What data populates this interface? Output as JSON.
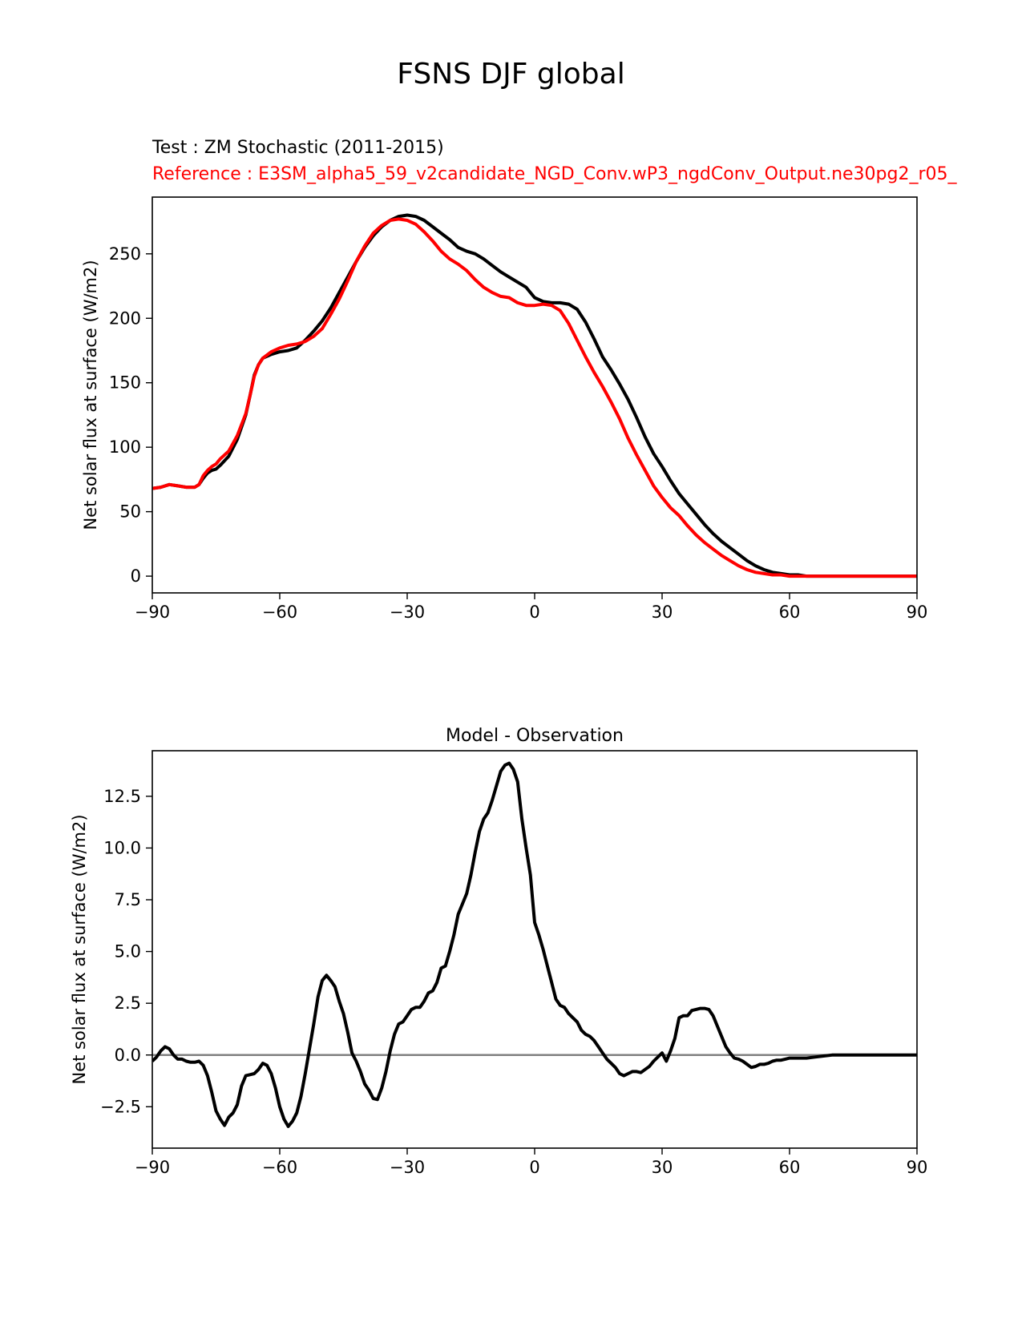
{
  "suptitle": "FSNS DJF global",
  "test_label": "Test : ZM Stochastic (2011-2015)",
  "reference_label": "Reference : E3SM_alpha5_59_v2candidate_NGD_Conv.wP3_ngdConv_Output.ne30pg2_r05_",
  "colors": {
    "test": "#000000",
    "reference": "#ff0000",
    "zero_line": "#808080"
  },
  "chart_data": [
    {
      "type": "line",
      "title": "",
      "xlabel": "",
      "ylabel": "Net solar flux at surface (W/m2)",
      "xlim": [
        -90,
        90
      ],
      "ylim": [
        -13,
        294
      ],
      "xticks": [
        -90,
        -60,
        -30,
        0,
        30,
        60,
        90
      ],
      "xtick_labels": [
        "−90",
        "−60",
        "−30",
        "0",
        "30",
        "60",
        "90"
      ],
      "yticks": [
        0,
        50,
        100,
        150,
        200,
        250
      ],
      "ytick_labels": [
        "0",
        "50",
        "100",
        "150",
        "200",
        "250"
      ],
      "series": [
        {
          "name": "Test",
          "color": "#000000",
          "x": [
            -90,
            -88,
            -86,
            -84,
            -82,
            -80,
            -79,
            -78,
            -77,
            -76,
            -75,
            -74,
            -72,
            -70,
            -68,
            -67,
            -66,
            -65,
            -64,
            -62,
            -60,
            -58,
            -56,
            -54,
            -52,
            -50,
            -48,
            -46,
            -44,
            -42,
            -40,
            -38,
            -36,
            -34,
            -32,
            -30,
            -28,
            -26,
            -24,
            -22,
            -20,
            -18,
            -16,
            -14,
            -12,
            -10,
            -8,
            -6,
            -4,
            -2,
            -1,
            0,
            2,
            4,
            6,
            8,
            10,
            12,
            14,
            16,
            18,
            20,
            22,
            24,
            26,
            28,
            30,
            32,
            34,
            36,
            38,
            40,
            42,
            44,
            46,
            48,
            50,
            52,
            54,
            56,
            58,
            60,
            62,
            64,
            66,
            68,
            70,
            74,
            78,
            82,
            86,
            90
          ],
          "y": [
            68,
            69,
            71,
            70,
            69,
            69,
            71,
            76,
            80,
            82,
            83,
            86,
            93,
            106,
            125,
            140,
            156,
            164,
            169,
            172,
            174,
            175,
            177,
            183,
            190,
            198,
            208,
            220,
            232,
            244,
            255,
            264,
            271,
            276,
            279,
            280,
            279,
            276,
            271,
            266,
            261,
            255,
            252,
            250,
            246,
            241,
            236,
            232,
            228,
            224,
            220,
            216,
            213,
            212,
            212,
            211,
            207,
            197,
            184,
            170,
            160,
            149,
            137,
            123,
            108,
            95,
            85,
            74,
            64,
            56,
            48,
            40,
            33,
            27,
            22,
            17,
            12,
            8,
            5,
            3,
            2,
            1,
            1,
            0,
            0,
            0,
            0,
            0,
            0,
            0,
            0,
            0
          ]
        },
        {
          "name": "Reference",
          "color": "#ff0000",
          "x": [
            -90,
            -88,
            -86,
            -84,
            -82,
            -80,
            -79,
            -78,
            -77,
            -76,
            -75,
            -74,
            -72,
            -70,
            -68,
            -67,
            -66,
            -65,
            -64,
            -62,
            -60,
            -58,
            -56,
            -54,
            -52,
            -50,
            -48,
            -46,
            -44,
            -42,
            -40,
            -38,
            -36,
            -34,
            -32,
            -30,
            -28,
            -26,
            -24,
            -22,
            -20,
            -18,
            -16,
            -14,
            -12,
            -10,
            -8,
            -6,
            -4,
            -2,
            -1,
            0,
            2,
            4,
            6,
            8,
            10,
            12,
            14,
            16,
            18,
            20,
            22,
            24,
            26,
            28,
            30,
            32,
            34,
            36,
            38,
            40,
            42,
            44,
            46,
            48,
            50,
            52,
            54,
            56,
            58,
            60,
            62,
            64,
            66,
            68,
            70,
            74,
            78,
            82,
            86,
            90
          ],
          "y": [
            68,
            69,
            71,
            70,
            69,
            69,
            71,
            78,
            82,
            85,
            87,
            91,
            97,
            109,
            126,
            140,
            155,
            164,
            169,
            174,
            177,
            179,
            180,
            182,
            186,
            192,
            203,
            215,
            229,
            244,
            256,
            266,
            272,
            276,
            277,
            276,
            273,
            267,
            260,
            252,
            246,
            242,
            237,
            230,
            224,
            220,
            217,
            216,
            212,
            210,
            210,
            210,
            211,
            210,
            206,
            196,
            183,
            170,
            158,
            147,
            135,
            122,
            107,
            94,
            82,
            70,
            61,
            53,
            47,
            39,
            32,
            26,
            21,
            16,
            12,
            8,
            5,
            3,
            2,
            1,
            1,
            0,
            0,
            0,
            0,
            0,
            0,
            0,
            0,
            0,
            0,
            0
          ]
        }
      ]
    },
    {
      "type": "line",
      "title": "Model - Observation",
      "xlabel": "",
      "ylabel": "Net solar flux at surface (W/m2)",
      "xlim": [
        -90,
        90
      ],
      "ylim": [
        -4.5,
        14.7
      ],
      "xticks": [
        -90,
        -60,
        -30,
        0,
        30,
        60,
        90
      ],
      "xtick_labels": [
        "−90",
        "−60",
        "−30",
        "0",
        "30",
        "60",
        "90"
      ],
      "yticks": [
        -2.5,
        0,
        2.5,
        5,
        7.5,
        10,
        12.5
      ],
      "ytick_labels": [
        "−2.5",
        "0.0",
        "2.5",
        "5.0",
        "7.5",
        "10.0",
        "12.5"
      ],
      "zero_line": 0,
      "series": [
        {
          "name": "Model - Observation",
          "color": "#000000",
          "x": [
            -90,
            -89,
            -88,
            -87,
            -86,
            -85,
            -84,
            -83,
            -82,
            -81,
            -80,
            -79,
            -78,
            -77,
            -76,
            -75,
            -74,
            -73,
            -72,
            -71,
            -70,
            -69,
            -68,
            -67,
            -66,
            -65,
            -64,
            -63,
            -62,
            -61,
            -60,
            -59,
            -58,
            -57,
            -56,
            -55,
            -54,
            -53,
            -52,
            -51,
            -50,
            -49,
            -48,
            -47,
            -46,
            -45,
            -44,
            -43,
            -42,
            -41,
            -40,
            -39,
            -38,
            -37,
            -36,
            -35,
            -34,
            -33,
            -32,
            -31,
            -30,
            -29,
            -28,
            -27,
            -26,
            -25,
            -24,
            -23,
            -22,
            -21,
            -20,
            -19,
            -18,
            -17,
            -16,
            -15,
            -14,
            -13,
            -12,
            -11,
            -10,
            -9,
            -8,
            -7,
            -6,
            -5,
            -4,
            -3,
            -2,
            -1,
            0,
            1,
            2,
            3,
            4,
            5,
            6,
            7,
            8,
            9,
            10,
            11,
            12,
            13,
            14,
            15,
            16,
            17,
            18,
            19,
            20,
            21,
            22,
            23,
            24,
            25,
            26,
            27,
            28,
            29,
            30,
            31,
            32,
            33,
            34,
            35,
            36,
            37,
            38,
            39,
            40,
            41,
            42,
            43,
            44,
            45,
            46,
            47,
            48,
            49,
            50,
            51,
            52,
            53,
            54,
            55,
            56,
            57,
            58,
            59,
            60,
            62,
            64,
            66,
            68,
            70,
            74,
            78,
            82,
            86,
            90
          ],
          "y": [
            -0.3,
            -0.1,
            0.2,
            0.4,
            0.3,
            0.0,
            -0.2,
            -0.2,
            -0.3,
            -0.35,
            -0.35,
            -0.3,
            -0.5,
            -1.0,
            -1.8,
            -2.7,
            -3.1,
            -3.4,
            -3.0,
            -2.8,
            -2.4,
            -1.5,
            -1.0,
            -0.95,
            -0.9,
            -0.7,
            -0.4,
            -0.5,
            -0.9,
            -1.6,
            -2.5,
            -3.1,
            -3.45,
            -3.2,
            -2.8,
            -2.0,
            -0.9,
            0.3,
            1.5,
            2.8,
            3.6,
            3.85,
            3.6,
            3.3,
            2.6,
            2.0,
            1.1,
            0.1,
            -0.3,
            -0.8,
            -1.4,
            -1.7,
            -2.1,
            -2.15,
            -1.6,
            -0.8,
            0.2,
            1.0,
            1.5,
            1.6,
            1.9,
            2.2,
            2.3,
            2.3,
            2.6,
            3.0,
            3.1,
            3.5,
            4.2,
            4.3,
            5.0,
            5.8,
            6.8,
            7.3,
            7.8,
            8.7,
            9.8,
            10.8,
            11.4,
            11.7,
            12.3,
            13.0,
            13.7,
            14.0,
            14.1,
            13.8,
            13.2,
            11.4,
            10.0,
            8.7,
            6.4,
            5.8,
            5.1,
            4.3,
            3.5,
            2.7,
            2.4,
            2.3,
            2.0,
            1.8,
            1.6,
            1.2,
            1.0,
            0.9,
            0.7,
            0.4,
            0.1,
            -0.2,
            -0.4,
            -0.6,
            -0.9,
            -1.0,
            -0.9,
            -0.8,
            -0.8,
            -0.85,
            -0.7,
            -0.55,
            -0.3,
            -0.1,
            0.1,
            -0.3,
            0.2,
            0.8,
            1.8,
            1.9,
            1.9,
            2.15,
            2.2,
            2.25,
            2.25,
            2.2,
            1.9,
            1.4,
            0.9,
            0.4,
            0.1,
            -0.15,
            -0.2,
            -0.3,
            -0.45,
            -0.6,
            -0.55,
            -0.45,
            -0.45,
            -0.4,
            -0.3,
            -0.25,
            -0.25,
            -0.2,
            -0.15,
            -0.15,
            -0.15,
            -0.1,
            -0.05,
            0.0,
            0.0,
            0.0,
            0.0,
            0.0,
            0.0
          ]
        }
      ]
    }
  ]
}
